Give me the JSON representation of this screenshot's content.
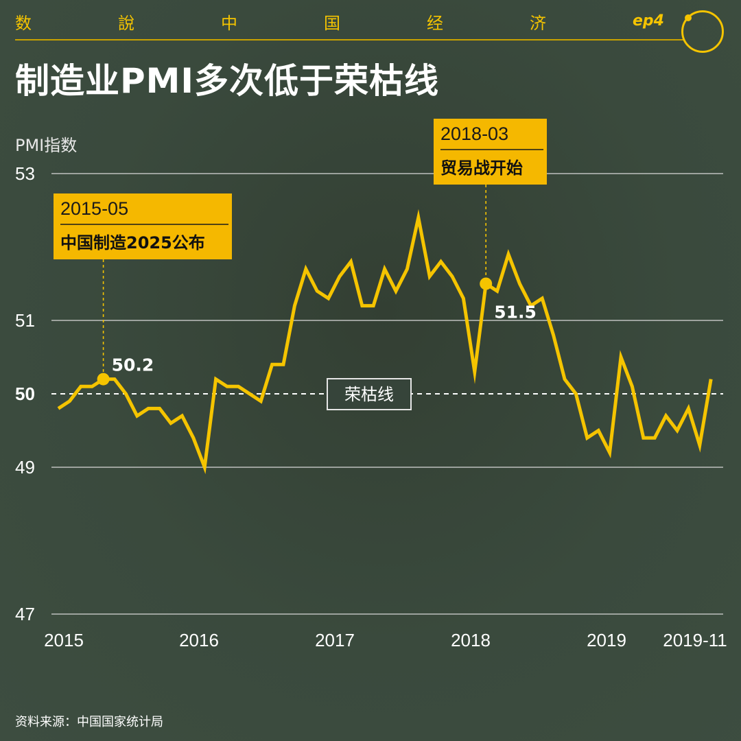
{
  "header": {
    "series_chars": [
      "数",
      "說",
      "中",
      "国",
      "经",
      "济"
    ],
    "episode": "ep4",
    "logo_text": "𠀀"
  },
  "title": "制造业PMI多次低于荣枯线",
  "source": "资料来源：中国国家统计局",
  "colors": {
    "accent": "#f5c400",
    "background": "#3a4a3d",
    "line": "#f5c400",
    "annotation_box": "#f5b800",
    "grid": "#d9d9d9"
  },
  "chart_data": {
    "type": "line",
    "title": "制造业PMI多次低于荣枯线",
    "ylabel": "PMI指数",
    "ylim": [
      47,
      53
    ],
    "yticks": [
      "53",
      "51",
      "50",
      "49",
      "47"
    ],
    "xticks": [
      "2015",
      "2016",
      "2017",
      "2018",
      "2019",
      "2019-11"
    ],
    "grid": true,
    "x": [
      "2015-01",
      "2015-02",
      "2015-03",
      "2015-04",
      "2015-05",
      "2015-06",
      "2015-07",
      "2015-08",
      "2015-09",
      "2015-10",
      "2015-11",
      "2015-12",
      "2016-01",
      "2016-02",
      "2016-03",
      "2016-04",
      "2016-05",
      "2016-06",
      "2016-07",
      "2016-08",
      "2016-09",
      "2016-10",
      "2016-11",
      "2016-12",
      "2017-01",
      "2017-02",
      "2017-03",
      "2017-04",
      "2017-05",
      "2017-06",
      "2017-07",
      "2017-08",
      "2017-09",
      "2017-10",
      "2017-11",
      "2017-12",
      "2018-01",
      "2018-02",
      "2018-03",
      "2018-04",
      "2018-05",
      "2018-06",
      "2018-07",
      "2018-08",
      "2018-09",
      "2018-10",
      "2018-11",
      "2018-12",
      "2019-01",
      "2019-02",
      "2019-03",
      "2019-04",
      "2019-05",
      "2019-06",
      "2019-07",
      "2019-08",
      "2019-09",
      "2019-10",
      "2019-11"
    ],
    "series": [
      {
        "values": [
          49.8,
          49.9,
          50.1,
          50.1,
          50.2,
          50.2,
          50.0,
          49.7,
          49.8,
          49.8,
          49.6,
          49.7,
          49.4,
          49.0,
          50.2,
          50.1,
          50.1,
          50.0,
          49.9,
          50.4,
          50.4,
          51.2,
          51.7,
          51.4,
          51.3,
          51.6,
          51.8,
          51.2,
          51.2,
          51.7,
          51.4,
          51.7,
          52.4,
          51.6,
          51.8,
          51.6,
          51.3,
          50.3,
          51.5,
          51.4,
          51.9,
          51.5,
          51.2,
          51.3,
          50.8,
          50.2,
          50.0,
          49.4,
          49.5,
          49.2,
          50.5,
          50.1,
          49.4,
          49.4,
          49.7,
          49.5,
          49.8,
          49.3,
          50.2
        ]
      }
    ],
    "baseline": {
      "value": 50,
      "label": "荣枯线"
    },
    "annotations": [
      {
        "date": "2015-05",
        "event": "中国制造2025公布",
        "value_label": "50.2",
        "x": "2015-05",
        "y": 50.2
      },
      {
        "date": "2018-03",
        "event": "贸易战开始",
        "value_label": "51.5",
        "x": "2018-03",
        "y": 51.5
      }
    ]
  }
}
